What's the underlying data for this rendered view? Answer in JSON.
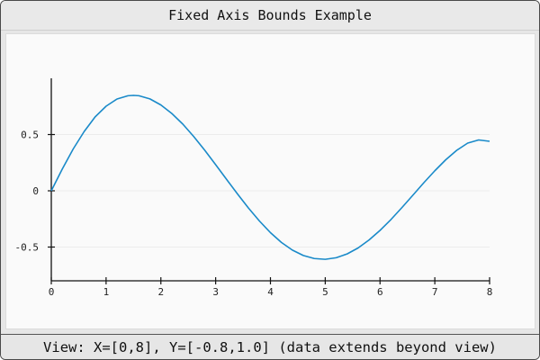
{
  "window": {
    "title": "Fixed Axis Bounds Example"
  },
  "status": {
    "text": "View: X=[0,8], Y=[-0.8,1.0] (data extends beyond view)"
  },
  "chart_data": {
    "type": "line",
    "title": "",
    "xlabel": "",
    "ylabel": "",
    "xlim": [
      0,
      8
    ],
    "ylim": [
      -0.8,
      1.0
    ],
    "x_ticks": [
      0,
      1,
      2,
      3,
      4,
      5,
      6,
      7,
      8
    ],
    "x_tick_labels": [
      "0",
      "1",
      "2",
      "3",
      "4",
      "5",
      "6",
      "7",
      "8"
    ],
    "y_ticks": [
      -0.5,
      0,
      0.5
    ],
    "y_tick_labels": [
      "-0.5",
      "0",
      "0.5"
    ],
    "grid": true,
    "series": [
      {
        "color": "#1a8ac9",
        "x": [
          0,
          0.2,
          0.4,
          0.6,
          0.8,
          1.0,
          1.2,
          1.4,
          1.5,
          1.6,
          1.8,
          2.0,
          2.2,
          2.4,
          2.6,
          2.8,
          3.0,
          3.2,
          3.4,
          3.6,
          3.8,
          4.0,
          4.2,
          4.4,
          4.6,
          4.8,
          5.0,
          5.2,
          5.4,
          5.6,
          5.8,
          6.0,
          6.2,
          6.4,
          6.6,
          6.8,
          7.0,
          7.2,
          7.4,
          7.6,
          7.8,
          8.0
        ],
        "values": [
          0.0,
          0.193,
          0.372,
          0.527,
          0.657,
          0.752,
          0.816,
          0.845,
          0.848,
          0.845,
          0.817,
          0.763,
          0.687,
          0.593,
          0.482,
          0.361,
          0.232,
          0.101,
          -0.029,
          -0.154,
          -0.269,
          -0.372,
          -0.459,
          -0.527,
          -0.575,
          -0.602,
          -0.609,
          -0.595,
          -0.561,
          -0.508,
          -0.437,
          -0.352,
          -0.255,
          -0.149,
          -0.039,
          0.072,
          0.178,
          0.276,
          0.36,
          0.424,
          0.452,
          0.44
        ]
      }
    ]
  }
}
